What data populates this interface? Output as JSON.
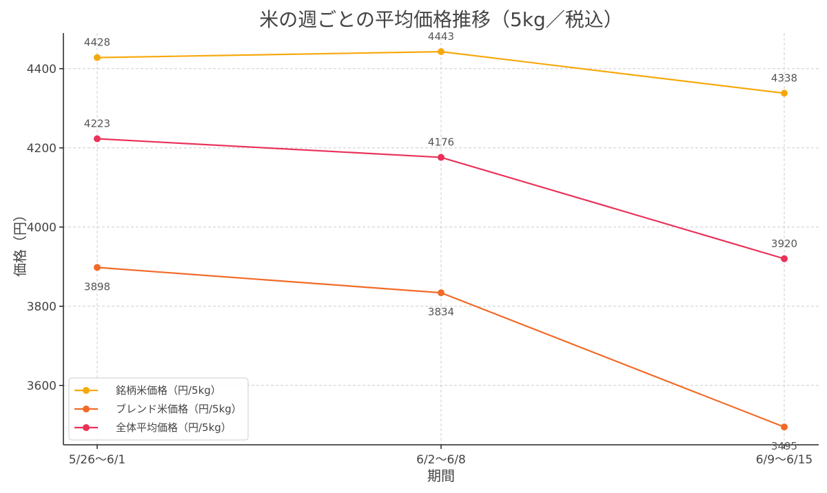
{
  "chart_data": {
    "type": "line",
    "title": "米の週ごとの平均価格推移（5kg／税込）",
    "xlabel": "期間",
    "ylabel": "価格（円）",
    "categories": [
      "5/26〜6/1",
      "6/2〜6/8",
      "6/9〜6/15"
    ],
    "yticks": [
      3600,
      3800,
      4000,
      4200,
      4400
    ],
    "ylim": [
      3450,
      4490
    ],
    "grid": true,
    "legend_position": "lower-left",
    "series": [
      {
        "name": "銘柄米価格（円/5kg）",
        "color": "#f7a80c",
        "values": [
          4428,
          4443,
          4338
        ],
        "label_position": "above"
      },
      {
        "name": "ブレンド米価格（円/5kg）",
        "color": "#f26a26",
        "values": [
          3898,
          3834,
          3495
        ],
        "label_position": "below"
      },
      {
        "name": "全体平均価格（円/5kg）",
        "color": "#ea3158",
        "values": [
          4223,
          4176,
          3920
        ],
        "label_position": "above"
      }
    ]
  }
}
